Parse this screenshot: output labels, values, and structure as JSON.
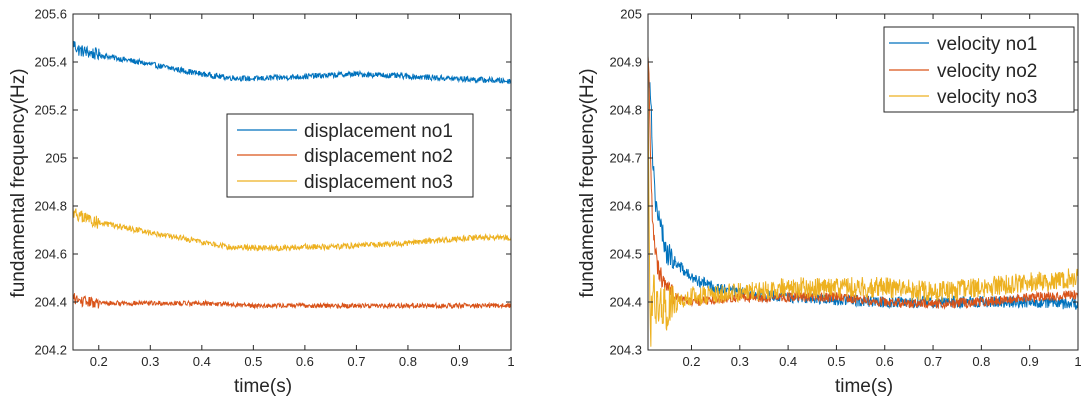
{
  "chart_data": [
    {
      "type": "line",
      "xlabel": "time(s)",
      "ylabel": "fundamental frequency(Hz)",
      "xlim": [
        0.15,
        1.0
      ],
      "ylim": [
        204.2,
        205.6
      ],
      "xticks": [
        0.2,
        0.3,
        0.4,
        0.5,
        0.6,
        0.7,
        0.8,
        0.9,
        1
      ],
      "xtick_labels": [
        "0.2",
        "0.3",
        "0.4",
        "0.5",
        "0.6",
        "0.7",
        "0.8",
        "0.9",
        "1"
      ],
      "yticks": [
        204.2,
        204.4,
        204.6,
        204.8,
        205,
        205.2,
        205.4,
        205.6
      ],
      "ytick_labels": [
        "204.2",
        "204.4",
        "204.6",
        "204.8",
        "205",
        "205.2",
        "205.4",
        "205.6"
      ],
      "grid": false,
      "legend_position": "center-right",
      "series": [
        {
          "name": "displacement no1",
          "color": "#0072BD",
          "noise": 0.012,
          "x": [
            0.15,
            0.16,
            0.2,
            0.25,
            0.3,
            0.35,
            0.4,
            0.45,
            0.5,
            0.55,
            0.6,
            0.65,
            0.7,
            0.75,
            0.8,
            0.85,
            0.9,
            0.95,
            1.0
          ],
          "y": [
            205.48,
            205.45,
            205.43,
            205.41,
            205.39,
            205.37,
            205.35,
            205.335,
            205.33,
            205.335,
            205.34,
            205.345,
            205.35,
            205.345,
            205.34,
            205.335,
            205.33,
            205.325,
            205.32
          ]
        },
        {
          "name": "displacement no2",
          "color": "#D95319",
          "noise": 0.01,
          "x": [
            0.15,
            0.16,
            0.2,
            0.3,
            0.4,
            0.5,
            0.6,
            0.7,
            0.8,
            0.9,
            1.0
          ],
          "y": [
            204.42,
            204.405,
            204.395,
            204.395,
            204.395,
            204.385,
            204.385,
            204.385,
            204.385,
            204.385,
            204.385
          ]
        },
        {
          "name": "displacement no3",
          "color": "#EDB120",
          "noise": 0.012,
          "x": [
            0.15,
            0.16,
            0.2,
            0.25,
            0.3,
            0.35,
            0.4,
            0.45,
            0.5,
            0.55,
            0.6,
            0.65,
            0.7,
            0.75,
            0.8,
            0.85,
            0.9,
            0.95,
            1.0
          ],
          "y": [
            204.78,
            204.76,
            204.73,
            204.71,
            204.69,
            204.67,
            204.65,
            204.63,
            204.625,
            204.625,
            204.63,
            204.63,
            204.635,
            204.64,
            204.645,
            204.655,
            204.665,
            204.67,
            204.665
          ]
        }
      ]
    },
    {
      "type": "line",
      "xlabel": "time(s)",
      "ylabel": "fundamental frequency(Hz)",
      "xlim": [
        0.11,
        1.0
      ],
      "ylim": [
        204.3,
        205.0
      ],
      "xticks": [
        0.2,
        0.3,
        0.4,
        0.5,
        0.6,
        0.7,
        0.8,
        0.9,
        1
      ],
      "xtick_labels": [
        "0.2",
        "0.3",
        "0.4",
        "0.5",
        "0.6",
        "0.7",
        "0.8",
        "0.9",
        "1"
      ],
      "yticks": [
        204.3,
        204.4,
        204.5,
        204.6,
        204.7,
        204.8,
        204.9,
        205
      ],
      "ytick_labels": [
        "204.3",
        "204.4",
        "204.5",
        "204.6",
        "204.7",
        "204.8",
        "204.9",
        "205"
      ],
      "grid": false,
      "legend_position": "top-right",
      "series": [
        {
          "name": "velocity no1",
          "color": "#0072BD",
          "noise": 0.012,
          "x": [
            0.11,
            0.115,
            0.12,
            0.125,
            0.13,
            0.14,
            0.15,
            0.17,
            0.2,
            0.25,
            0.3,
            0.4,
            0.5,
            0.6,
            0.7,
            0.8,
            0.9,
            1.0
          ],
          "y": [
            204.9,
            204.85,
            204.7,
            204.62,
            204.58,
            204.54,
            204.5,
            204.48,
            204.45,
            204.43,
            204.42,
            204.41,
            204.405,
            204.4,
            204.4,
            204.4,
            204.4,
            204.395
          ]
        },
        {
          "name": "velocity no2",
          "color": "#D95319",
          "noise": 0.01,
          "x": [
            0.11,
            0.112,
            0.115,
            0.12,
            0.13,
            0.15,
            0.2,
            0.3,
            0.4,
            0.5,
            0.6,
            0.7,
            0.8,
            0.9,
            1.0
          ],
          "y": [
            204.9,
            204.86,
            204.7,
            204.55,
            204.47,
            204.42,
            204.4,
            204.41,
            204.41,
            204.41,
            204.4,
            204.395,
            204.4,
            204.41,
            204.415
          ]
        },
        {
          "name": "velocity no3",
          "color": "#EDB120",
          "noise": 0.022,
          "x": [
            0.11,
            0.112,
            0.115,
            0.12,
            0.13,
            0.15,
            0.2,
            0.3,
            0.4,
            0.5,
            0.6,
            0.7,
            0.8,
            0.9,
            1.0
          ],
          "y": [
            204.9,
            204.6,
            204.34,
            204.42,
            204.38,
            204.39,
            204.41,
            204.42,
            204.43,
            204.43,
            204.43,
            204.42,
            204.43,
            204.44,
            204.45
          ]
        }
      ]
    }
  ]
}
